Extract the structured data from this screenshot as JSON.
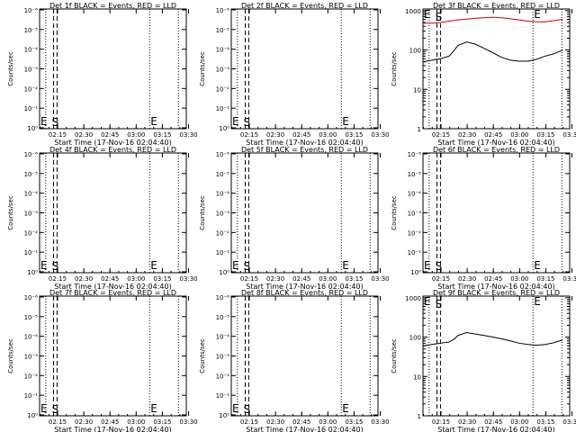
{
  "chart_data": [
    {
      "type": "line",
      "title": "Det 1f BLACK = Events, RED = LLD",
      "ylabel": "Counts/sec",
      "xlabel": "Start Time (17-Nov-16 02:04:40)",
      "xticks": [
        "02:15",
        "02:30",
        "02:45",
        "03:00",
        "03:15",
        "03:30"
      ],
      "yticks": [
        "10⁰",
        "10⁻¹",
        "10⁻²",
        "10⁻³",
        "10⁻⁴",
        "10⁻⁵",
        "10⁻⁶"
      ],
      "markers": {
        "start": "S",
        "end": "E"
      },
      "series": []
    },
    {
      "type": "line",
      "title": "Det 2f BLACK = Events, RED = LLD",
      "ylabel": "Counts/sec",
      "xlabel": "Start Time (17-Nov-16 02:04:40)",
      "xticks": [
        "02:15",
        "02:30",
        "02:45",
        "03:00",
        "03:15",
        "03:30"
      ],
      "yticks": [
        "10⁰",
        "10⁻¹",
        "10⁻²",
        "10⁻³",
        "10⁻⁴",
        "10⁻⁵",
        "10⁻⁶"
      ],
      "markers": {
        "start": "S",
        "end": "E"
      },
      "series": []
    },
    {
      "type": "line",
      "title": "Det 3f BLACK = Events, RED = LLD",
      "ylabel": "Counts/sec",
      "xlabel": "Start Time (17-Nov-16 02:04:40)",
      "xticks": [
        "02:15",
        "02:30",
        "02:45",
        "03:00",
        "03:15",
        "03:30"
      ],
      "yticks": [
        "1",
        "10",
        "100",
        "1000"
      ],
      "markers": {
        "start": "S",
        "end": "E"
      },
      "series": [
        {
          "color": "#d00000",
          "x": [
            0,
            5,
            10,
            15,
            20,
            25,
            30,
            35,
            40,
            45,
            50,
            55,
            60,
            65,
            70,
            75,
            80
          ],
          "y": [
            480,
            480,
            500,
            540,
            580,
            610,
            640,
            660,
            680,
            660,
            620,
            580,
            540,
            520,
            520,
            560,
            600
          ]
        },
        {
          "color": "#000000",
          "x": [
            0,
            5,
            10,
            15,
            18,
            20,
            25,
            30,
            35,
            40,
            45,
            50,
            55,
            60,
            65,
            70,
            75,
            80
          ],
          "y": [
            50,
            55,
            60,
            70,
            100,
            130,
            160,
            140,
            110,
            85,
            65,
            55,
            52,
            52,
            58,
            70,
            80,
            100
          ]
        }
      ]
    },
    {
      "type": "line",
      "title": "Det 4f BLACK = Events, RED = LLD",
      "ylabel": "Counts/sec",
      "xlabel": "Start Time (17-Nov-16 02:04:40)",
      "xticks": [
        "02:15",
        "02:30",
        "02:45",
        "03:00",
        "03:15",
        "03:30"
      ],
      "yticks": [
        "10⁰",
        "10⁻¹",
        "10⁻²",
        "10⁻³",
        "10⁻⁴",
        "10⁻⁵",
        "10⁻⁶"
      ],
      "markers": {
        "start": "S",
        "end": "E"
      },
      "series": []
    },
    {
      "type": "line",
      "title": "Det 5f BLACK = Events, RED = LLD",
      "ylabel": "Counts/sec",
      "xlabel": "Start Time (17-Nov-16 02:04:40)",
      "xticks": [
        "02:15",
        "02:30",
        "02:45",
        "03:00",
        "03:15",
        "03:30"
      ],
      "yticks": [
        "10⁰",
        "10⁻¹",
        "10⁻²",
        "10⁻³",
        "10⁻⁴",
        "10⁻⁵",
        "10⁻⁶"
      ],
      "markers": {
        "start": "S",
        "end": "E"
      },
      "series": []
    },
    {
      "type": "line",
      "title": "Det 6f BLACK = Events, RED = LLD",
      "ylabel": "Counts/sec",
      "xlabel": "Start Time (17-Nov-16 02:04:40)",
      "xticks": [
        "02:15",
        "02:30",
        "02:45",
        "03:00",
        "03:15",
        "03:30"
      ],
      "yticks": [
        "10⁰",
        "10⁻¹",
        "10⁻²",
        "10⁻³",
        "10⁻⁴",
        "10⁻⁵",
        "10⁻⁶"
      ],
      "markers": {
        "start": "S",
        "end": "E"
      },
      "series": []
    },
    {
      "type": "line",
      "title": "Det 7f BLACK = Events, RED = LLD",
      "ylabel": "Counts/sec",
      "xlabel": "Start Time (17-Nov-16 02:04:40)",
      "xticks": [
        "02:15",
        "02:30",
        "02:45",
        "03:00",
        "03:15",
        "03:30"
      ],
      "yticks": [
        "10⁰",
        "10⁻¹",
        "10⁻²",
        "10⁻³",
        "10⁻⁴",
        "10⁻⁵",
        "10⁻⁶"
      ],
      "markers": {
        "start": "S",
        "end": "E"
      },
      "series": []
    },
    {
      "type": "line",
      "title": "Det 8f BLACK = Events, RED = LLD",
      "ylabel": "Counts/sec",
      "xlabel": "Start Time (17-Nov-16 02:04:40)",
      "xticks": [
        "02:15",
        "02:30",
        "02:45",
        "03:00",
        "03:15",
        "03:30"
      ],
      "yticks": [
        "10⁰",
        "10⁻¹",
        "10⁻²",
        "10⁻³",
        "10⁻⁴",
        "10⁻⁵",
        "10⁻⁶"
      ],
      "markers": {
        "start": "S",
        "end": "E"
      },
      "series": []
    },
    {
      "type": "line",
      "title": "Det 9f BLACK = Events, RED = LLD",
      "ylabel": "Counts/sec",
      "xlabel": "Start Time (17-Nov-16 02:04:40)",
      "xticks": [
        "02:15",
        "02:30",
        "02:45",
        "03:00",
        "03:15",
        "03:30"
      ],
      "yticks": [
        "1",
        "10",
        "100",
        "1000"
      ],
      "markers": {
        "start": "S",
        "end": "E"
      },
      "series": [
        {
          "color": "#000000",
          "x": [
            0,
            5,
            10,
            15,
            18,
            20,
            25,
            30,
            35,
            40,
            45,
            50,
            55,
            60,
            65,
            70,
            75,
            80
          ],
          "y": [
            60,
            65,
            70,
            75,
            90,
            110,
            130,
            120,
            110,
            100,
            90,
            80,
            70,
            65,
            62,
            65,
            72,
            85
          ]
        }
      ]
    }
  ]
}
